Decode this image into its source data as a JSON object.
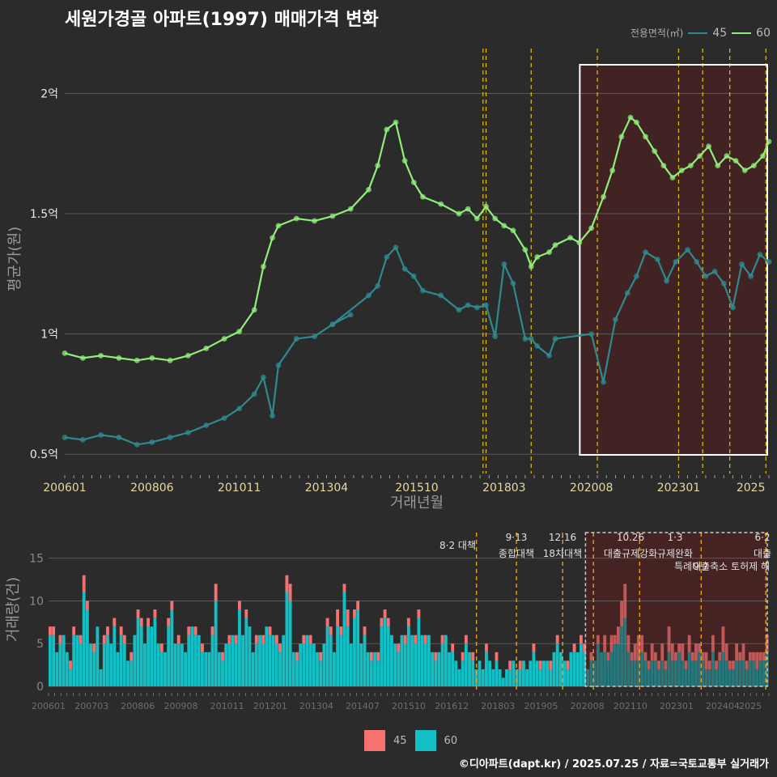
{
  "title": "세원가경골 아파트(1997) 매매가격 변화",
  "credit": "©디아파트(dapt.kr) / 2025.07.25 / 자료=국토교통부 실거래가",
  "legend_top": {
    "title": "전용면적(㎡)",
    "items": [
      "45",
      "60"
    ]
  },
  "legend_bottom": {
    "items": [
      "45",
      "60"
    ]
  },
  "colors": {
    "s45_line": "#2f8a8f",
    "s60_line": "#90ee7a",
    "s45_bar": "#f87171",
    "s60_bar": "#11bfc4",
    "highlight": "#4a2222",
    "policy": "#e6c219"
  },
  "chart_data": [
    {
      "type": "line",
      "ylabel": "평균가(원)",
      "xlabel": "거래년월",
      "x_ticks": [
        "200601",
        "200806",
        "201011",
        "201304",
        "201510",
        "201803",
        "202008",
        "202301",
        "2025"
      ],
      "y_ticks": [
        "0.5억",
        "1억",
        "1.5억",
        "2억"
      ],
      "ylim": [
        0.42,
        2.2
      ],
      "y_unit": "억",
      "highlight_range": [
        "202009",
        "202507"
      ],
      "policy_dates": [
        "201708",
        "201709",
        "201812",
        "202010",
        "202301",
        "202309",
        "202406",
        "202506"
      ],
      "series": [
        {
          "name": "45",
          "points": [
            [
              "200601",
              0.57
            ],
            [
              "200607",
              0.56
            ],
            [
              "200701",
              0.58
            ],
            [
              "200707",
              0.57
            ],
            [
              "200801",
              0.54
            ],
            [
              "200806",
              0.55
            ],
            [
              "200812",
              0.57
            ],
            [
              "200906",
              0.59
            ],
            [
              "200912",
              0.62
            ],
            [
              "201006",
              0.65
            ],
            [
              "201011",
              0.69
            ],
            [
              "201104",
              0.75
            ],
            [
              "201107",
              0.82
            ],
            [
              "201110",
              0.66
            ],
            [
              "201112",
              0.87
            ],
            [
              "201206",
              0.98
            ],
            [
              "201212",
              0.99
            ],
            [
              "201306",
              1.04
            ],
            [
              "201312",
              1.08
            ],
            [
              "201306",
              1.04
            ],
            [
              "201406",
              1.16
            ],
            [
              "201409",
              1.2
            ],
            [
              "201412",
              1.32
            ],
            [
              "201503",
              1.36
            ],
            [
              "201506",
              1.27
            ],
            [
              "201509",
              1.24
            ],
            [
              "201512",
              1.18
            ],
            [
              "201606",
              1.16
            ],
            [
              "201612",
              1.1
            ],
            [
              "201703",
              1.12
            ],
            [
              "201706",
              1.11
            ],
            [
              "201709",
              1.12
            ],
            [
              "201712",
              0.99
            ],
            [
              "201803",
              1.29
            ],
            [
              "201806",
              1.21
            ],
            [
              "201810",
              0.98
            ],
            [
              "201812",
              0.98
            ],
            [
              "201902",
              0.95
            ],
            [
              "201906",
              0.91
            ],
            [
              "201908",
              0.98
            ],
            [
              "202008",
              1.0
            ],
            [
              "202012",
              0.8
            ],
            [
              "202104",
              1.06
            ],
            [
              "202108",
              1.17
            ],
            [
              "202111",
              1.24
            ],
            [
              "202202",
              1.34
            ],
            [
              "202206",
              1.31
            ],
            [
              "202209",
              1.22
            ],
            [
              "202212",
              1.3
            ],
            [
              "202304",
              1.35
            ],
            [
              "202307",
              1.3
            ],
            [
              "202310",
              1.24
            ],
            [
              "202401",
              1.26
            ],
            [
              "202404",
              1.21
            ],
            [
              "202407",
              1.11
            ],
            [
              "202410",
              1.29
            ],
            [
              "202501",
              1.24
            ],
            [
              "202504",
              1.33
            ],
            [
              "202507",
              1.3
            ]
          ]
        },
        {
          "name": "60",
          "points": [
            [
              "200601",
              0.92
            ],
            [
              "200607",
              0.9
            ],
            [
              "200701",
              0.91
            ],
            [
              "200707",
              0.9
            ],
            [
              "200801",
              0.89
            ],
            [
              "200806",
              0.9
            ],
            [
              "200812",
              0.89
            ],
            [
              "200906",
              0.91
            ],
            [
              "200912",
              0.94
            ],
            [
              "201006",
              0.98
            ],
            [
              "201011",
              1.01
            ],
            [
              "201104",
              1.1
            ],
            [
              "201107",
              1.28
            ],
            [
              "201110",
              1.4
            ],
            [
              "201112",
              1.45
            ],
            [
              "201206",
              1.48
            ],
            [
              "201212",
              1.47
            ],
            [
              "201306",
              1.49
            ],
            [
              "201312",
              1.52
            ],
            [
              "201406",
              1.6
            ],
            [
              "201409",
              1.7
            ],
            [
              "201412",
              1.85
            ],
            [
              "201503",
              1.88
            ],
            [
              "201506",
              1.72
            ],
            [
              "201509",
              1.63
            ],
            [
              "201512",
              1.57
            ],
            [
              "201606",
              1.54
            ],
            [
              "201612",
              1.5
            ],
            [
              "201703",
              1.52
            ],
            [
              "201706",
              1.48
            ],
            [
              "201709",
              1.53
            ],
            [
              "201712",
              1.48
            ],
            [
              "201803",
              1.45
            ],
            [
              "201806",
              1.43
            ],
            [
              "201810",
              1.35
            ],
            [
              "201812",
              1.28
            ],
            [
              "201902",
              1.32
            ],
            [
              "201906",
              1.34
            ],
            [
              "201908",
              1.37
            ],
            [
              "202001",
              1.4
            ],
            [
              "202004",
              1.38
            ],
            [
              "202008",
              1.44
            ],
            [
              "202012",
              1.57
            ],
            [
              "202103",
              1.68
            ],
            [
              "202106",
              1.82
            ],
            [
              "202109",
              1.9
            ],
            [
              "202111",
              1.88
            ],
            [
              "202202",
              1.82
            ],
            [
              "202205",
              1.76
            ],
            [
              "202208",
              1.7
            ],
            [
              "202211",
              1.65
            ],
            [
              "202302",
              1.68
            ],
            [
              "202305",
              1.7
            ],
            [
              "202308",
              1.74
            ],
            [
              "202311",
              1.78
            ],
            [
              "202402",
              1.7
            ],
            [
              "202405",
              1.74
            ],
            [
              "202408",
              1.72
            ],
            [
              "202411",
              1.68
            ],
            [
              "202502",
              1.7
            ],
            [
              "202505",
              1.74
            ],
            [
              "202507",
              1.8
            ]
          ]
        }
      ]
    },
    {
      "type": "bar",
      "stacked": true,
      "ylabel": "거래량(건)",
      "x_ticks": [
        "200601",
        "200703",
        "200806",
        "200908",
        "201011",
        "201201",
        "201304",
        "201407",
        "201510",
        "201612",
        "201803",
        "201905",
        "202008",
        "202110",
        "202301",
        "202404",
        "2025"
      ],
      "y_ticks": [
        "0",
        "5",
        "10",
        "15"
      ],
      "ylim": [
        0,
        18
      ],
      "highlight_range": [
        "202009",
        "202507"
      ],
      "policy_dates": [
        "201708",
        "201809",
        "201912",
        "202010",
        "202201",
        "202309",
        "202506"
      ],
      "annotations": [
        "8·2 대책",
        "9·13",
        "종합대책",
        "12·16",
        "18차대책",
        "10.26",
        "대출규제강화",
        "1·3",
        "규제완화",
        "9·7",
        "특례대출축소 토허제 해",
        "6·2",
        "대출"
      ],
      "series": [
        {
          "name": "60",
          "values": [
            6,
            6,
            4,
            5,
            6,
            4,
            2,
            6,
            6,
            5,
            11,
            9,
            5,
            4,
            7,
            2,
            5,
            6,
            5,
            7,
            4,
            6,
            5,
            3,
            3,
            6,
            8,
            7,
            5,
            7,
            7,
            8,
            5,
            4,
            4,
            7,
            9,
            5,
            5,
            5,
            4,
            6,
            7,
            6,
            6,
            4,
            4,
            4,
            6,
            10,
            4,
            3,
            5,
            5,
            6,
            5,
            9,
            6,
            8,
            7,
            4,
            5,
            6,
            5,
            7,
            6,
            6,
            5,
            4,
            6,
            11,
            10,
            4,
            3,
            5,
            5,
            6,
            5,
            5,
            4,
            3,
            5,
            7,
            6,
            4,
            7,
            6,
            11,
            7,
            5,
            8,
            9,
            5,
            6,
            4,
            3,
            4,
            3,
            7,
            8,
            7,
            6,
            5,
            4,
            6,
            5,
            7,
            6,
            5,
            8,
            6,
            5,
            6,
            4,
            3,
            4,
            5,
            6,
            4,
            4,
            3,
            2,
            3,
            5,
            4,
            3,
            2,
            3,
            2,
            4,
            3,
            2,
            3,
            2,
            1,
            2,
            2,
            3,
            2,
            2,
            3,
            2,
            3,
            4,
            3,
            2,
            3,
            3,
            2,
            4,
            5,
            4,
            3,
            2,
            4,
            4,
            4,
            5,
            4,
            2,
            3,
            3,
            5,
            4,
            4,
            3,
            4,
            5,
            5,
            7,
            8,
            4,
            3,
            3,
            3,
            4,
            3,
            2,
            3,
            3,
            2,
            3,
            2,
            4,
            3,
            3,
            4,
            3,
            2,
            4,
            3,
            3,
            4,
            3,
            2,
            2,
            4,
            2,
            3,
            4,
            3,
            2,
            2,
            3,
            3,
            3,
            2,
            3,
            3,
            2,
            3,
            3,
            4
          ]
        },
        {
          "name": "45",
          "values": [
            1,
            1,
            0,
            1,
            0,
            0,
            1,
            1,
            0,
            1,
            2,
            1,
            0,
            1,
            0,
            0,
            1,
            1,
            0,
            1,
            0,
            1,
            1,
            0,
            1,
            0,
            1,
            1,
            0,
            1,
            0,
            1,
            0,
            1,
            0,
            1,
            1,
            0,
            1,
            0,
            0,
            1,
            0,
            1,
            0,
            1,
            0,
            0,
            1,
            2,
            0,
            1,
            0,
            1,
            0,
            1,
            1,
            0,
            1,
            0,
            0,
            1,
            0,
            1,
            0,
            1,
            0,
            1,
            1,
            0,
            2,
            2,
            0,
            1,
            0,
            1,
            0,
            1,
            0,
            0,
            1,
            0,
            1,
            1,
            0,
            2,
            1,
            1,
            2,
            0,
            1,
            1,
            0,
            1,
            0,
            1,
            0,
            1,
            1,
            1,
            1,
            0,
            0,
            1,
            0,
            1,
            1,
            0,
            1,
            1,
            0,
            1,
            0,
            0,
            1,
            0,
            1,
            0,
            0,
            1,
            0,
            0,
            1,
            1,
            0,
            1,
            0,
            0,
            0,
            1,
            0,
            0,
            1,
            0,
            0,
            0,
            1,
            0,
            0,
            1,
            0,
            0,
            0,
            1,
            0,
            1,
            0,
            0,
            1,
            0,
            1,
            0,
            0,
            1,
            0,
            1,
            0,
            1,
            1,
            0,
            1,
            0,
            1,
            0,
            2,
            1,
            2,
            1,
            2,
            3,
            4,
            2,
            1,
            2,
            3,
            2,
            1,
            1,
            2,
            1,
            1,
            2,
            1,
            3,
            2,
            1,
            1,
            2,
            1,
            2,
            1,
            2,
            1,
            1,
            2,
            1,
            2,
            1,
            1,
            3,
            2,
            1,
            1,
            2,
            1,
            2,
            1,
            1,
            1,
            2,
            1,
            1,
            2
          ]
        }
      ]
    }
  ]
}
